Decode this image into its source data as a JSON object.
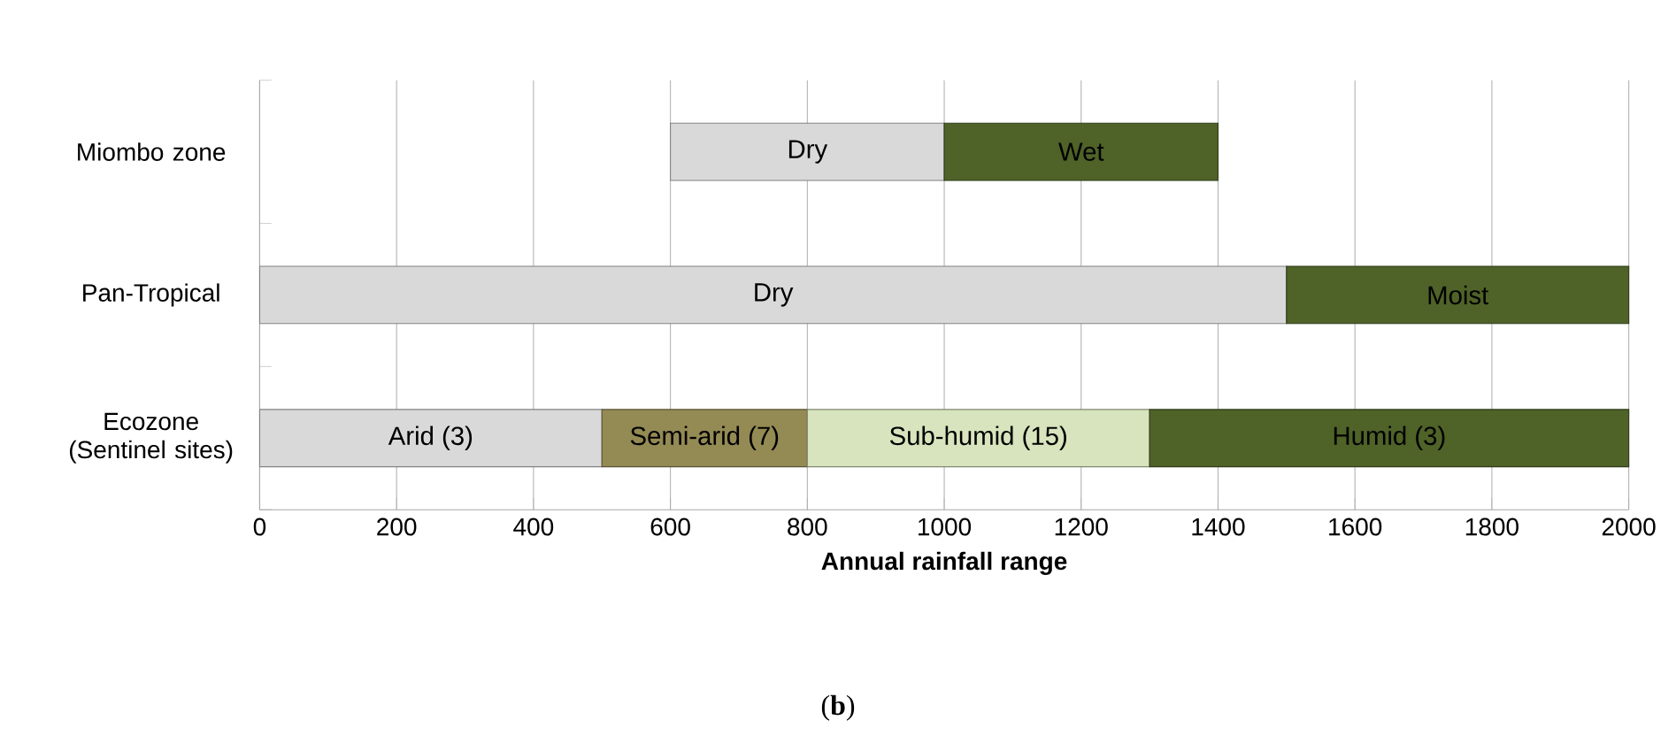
{
  "chart_data": {
    "type": "bar",
    "orientation": "horizontal",
    "xlabel": "Annual rainfall range",
    "categories": [
      "Miombo zone",
      "Pan-Tropical",
      "Ecozone (Sentinel sites)"
    ],
    "series": [
      {
        "name": "Dry",
        "color": "#d9d9d9",
        "base": [
          600,
          null,
          null
        ],
        "values": [
          400,
          null,
          null
        ]
      },
      {
        "name": "Wet",
        "color": "#4f6228",
        "base": [
          1000,
          null,
          null
        ],
        "values": [
          400,
          null,
          null
        ]
      },
      {
        "name": "Dry",
        "color": "#d9d9d9",
        "base": [
          null,
          0,
          null
        ],
        "values": [
          null,
          1500,
          null
        ]
      },
      {
        "name": "Moist",
        "color": "#4f6228",
        "base": [
          null,
          1500,
          null
        ],
        "values": [
          null,
          500,
          null
        ]
      },
      {
        "name": "Arid (3)",
        "color": "#d9d9d9",
        "base": [
          null,
          null,
          0
        ],
        "values": [
          null,
          null,
          500
        ]
      },
      {
        "name": "Semi-arid (7)",
        "color": "#948a54",
        "base": [
          null,
          null,
          500
        ],
        "values": [
          null,
          null,
          300
        ]
      },
      {
        "name": "Sub-humid (15)",
        "color": "#d7e4bd",
        "base": [
          null,
          null,
          800
        ],
        "values": [
          null,
          null,
          500
        ]
      },
      {
        "name": "Humid (3)",
        "color": "#4f6228",
        "base": [
          null,
          null,
          1300
        ],
        "values": [
          null,
          null,
          700
        ]
      }
    ],
    "xlim": [
      0,
      2000
    ],
    "xticks": [
      0,
      200,
      400,
      600,
      800,
      1000,
      1200,
      1400,
      1600,
      1800,
      2000
    ],
    "grid": "x",
    "annotations": [
      "(**b**)"
    ]
  }
}
